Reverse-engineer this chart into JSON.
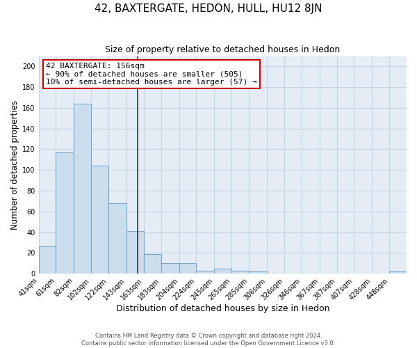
{
  "title": "42, BAXTERGATE, HEDON, HULL, HU12 8JN",
  "subtitle": "Size of property relative to detached houses in Hedon",
  "xlabel": "Distribution of detached houses by size in Hedon",
  "ylabel": "Number of detached properties",
  "bin_labels": [
    "41sqm",
    "61sqm",
    "82sqm",
    "102sqm",
    "122sqm",
    "143sqm",
    "163sqm",
    "183sqm",
    "204sqm",
    "224sqm",
    "245sqm",
    "265sqm",
    "285sqm",
    "306sqm",
    "326sqm",
    "346sqm",
    "367sqm",
    "387sqm",
    "407sqm",
    "428sqm",
    "448sqm"
  ],
  "bar_heights": [
    26,
    117,
    164,
    104,
    68,
    41,
    19,
    10,
    10,
    3,
    5,
    3,
    2,
    0,
    0,
    0,
    0,
    0,
    0,
    0,
    2
  ],
  "bin_edges": [
    41,
    61,
    82,
    102,
    122,
    143,
    163,
    183,
    204,
    224,
    245,
    265,
    285,
    306,
    326,
    346,
    367,
    387,
    407,
    428,
    448,
    468
  ],
  "bar_color": "#ccdded",
  "bar_edge_color": "#7aa8cc",
  "bar_linewidth": 0.8,
  "vline_x": 156,
  "vline_color": "#aa0000",
  "annotation_line1": "42 BAXTERGATE: 156sqm",
  "annotation_line2": "← 90% of detached houses are smaller (505)",
  "annotation_line3": "10% of semi-detached houses are larger (57) →",
  "annotation_box_color": "#cc0000",
  "ylim": [
    0,
    210
  ],
  "yticks": [
    0,
    20,
    40,
    60,
    80,
    100,
    120,
    140,
    160,
    180,
    200
  ],
  "grid_color": "#c8d4e4",
  "background_color": "#e4ecf5",
  "footer_line1": "Contains HM Land Registry data © Crown copyright and database right 2024.",
  "footer_line2": "Contains public sector information licensed under the Open Government Licence v3.0.",
  "title_fontsize": 11,
  "subtitle_fontsize": 9,
  "xlabel_fontsize": 9,
  "ylabel_fontsize": 8.5,
  "tick_fontsize": 7,
  "annotation_fontsize": 8
}
